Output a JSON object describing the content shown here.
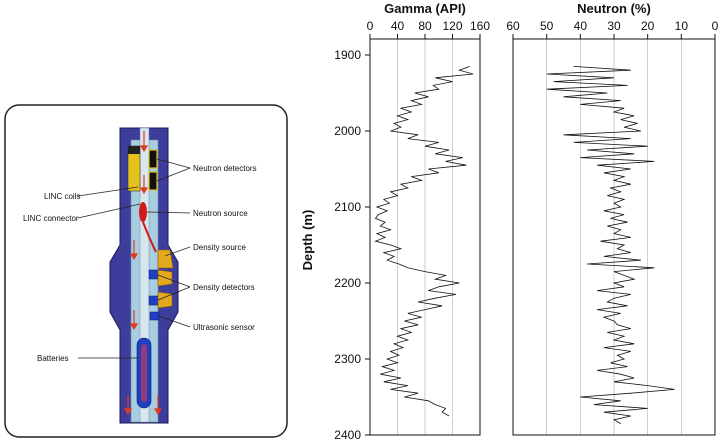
{
  "tool": {
    "labels": {
      "neutron_detectors": "Neutron detectors",
      "linc_coils": "LINC coils",
      "linc_connector": "LINC connector",
      "neutron_source": "Neutron source",
      "density_source": "Density source",
      "density_detectors": "Density detectors",
      "ultrasonic_sensor": "Ultrasonic sensor",
      "batteries": "Batteries"
    },
    "colors": {
      "collar": "#3d3d9c",
      "mandrel": "#a9cde0",
      "source": "#d11b1b",
      "detector": "#1f3fc4",
      "window": "#e3a81b",
      "flow": "#e23b1b"
    }
  },
  "chart_data": [
    {
      "type": "line",
      "title": "Gamma (API)",
      "x_axis_position": "top",
      "xlim": [
        0,
        160
      ],
      "xticks": [
        0,
        40,
        80,
        120,
        160
      ],
      "ylim": [
        1900,
        2400
      ],
      "yticks": [
        1900,
        2000,
        2100,
        2200,
        2300,
        2400
      ],
      "ylabel": "Depth (m)",
      "grid": "vertical",
      "series": [
        {
          "name": "Gamma",
          "depth": [
            1915,
            1920,
            1925,
            1930,
            1935,
            1940,
            1945,
            1950,
            1955,
            1960,
            1965,
            1970,
            1975,
            1980,
            1985,
            1990,
            1995,
            2000,
            2005,
            2010,
            2015,
            2020,
            2025,
            2030,
            2035,
            2040,
            2045,
            2050,
            2055,
            2060,
            2065,
            2070,
            2075,
            2080,
            2085,
            2090,
            2095,
            2100,
            2105,
            2110,
            2115,
            2120,
            2125,
            2130,
            2135,
            2140,
            2145,
            2150,
            2155,
            2160,
            2165,
            2170,
            2175,
            2180,
            2185,
            2190,
            2195,
            2200,
            2205,
            2210,
            2215,
            2220,
            2225,
            2230,
            2235,
            2240,
            2245,
            2250,
            2255,
            2260,
            2265,
            2270,
            2275,
            2280,
            2285,
            2290,
            2295,
            2300,
            2305,
            2310,
            2315,
            2320,
            2325,
            2330,
            2335,
            2340,
            2345,
            2350,
            2355,
            2360,
            2365,
            2370,
            2375
          ],
          "values": [
            145,
            130,
            150,
            95,
            120,
            92,
            100,
            65,
            85,
            60,
            75,
            45,
            60,
            40,
            55,
            35,
            45,
            30,
            70,
            55,
            100,
            80,
            115,
            95,
            135,
            110,
            140,
            85,
            100,
            60,
            75,
            45,
            55,
            30,
            40,
            20,
            28,
            10,
            25,
            12,
            8,
            22,
            15,
            30,
            10,
            22,
            8,
            30,
            45,
            20,
            35,
            25,
            42,
            55,
            80,
            110,
            95,
            130,
            100,
            85,
            125,
            95,
            70,
            105,
            80,
            55,
            75,
            50,
            70,
            45,
            60,
            40,
            55,
            35,
            48,
            30,
            42,
            25,
            40,
            18,
            35,
            15,
            45,
            20,
            55,
            30,
            70,
            50,
            85,
            95,
            110,
            105,
            115
          ]
        }
      ]
    },
    {
      "type": "line",
      "title": "Neutron (%)",
      "x_axis_position": "top",
      "xlim": [
        60,
        0
      ],
      "xticks": [
        60,
        50,
        40,
        30,
        20,
        10,
        0
      ],
      "ylim": [
        1900,
        2400
      ],
      "yticks": [
        1900,
        2000,
        2100,
        2200,
        2300,
        2400
      ],
      "grid": "vertical",
      "series": [
        {
          "name": "Neutron",
          "depth": [
            1915,
            1920,
            1925,
            1930,
            1935,
            1940,
            1945,
            1950,
            1955,
            1960,
            1965,
            1970,
            1975,
            1980,
            1985,
            1990,
            1995,
            2000,
            2005,
            2010,
            2015,
            2020,
            2025,
            2030,
            2035,
            2040,
            2045,
            2050,
            2055,
            2060,
            2065,
            2070,
            2075,
            2080,
            2085,
            2090,
            2095,
            2100,
            2105,
            2110,
            2115,
            2120,
            2125,
            2130,
            2135,
            2140,
            2145,
            2150,
            2155,
            2160,
            2165,
            2170,
            2175,
            2180,
            2185,
            2190,
            2195,
            2200,
            2205,
            2210,
            2215,
            2220,
            2225,
            2230,
            2235,
            2240,
            2245,
            2250,
            2255,
            2260,
            2265,
            2270,
            2275,
            2280,
            2285,
            2290,
            2295,
            2300,
            2305,
            2310,
            2315,
            2320,
            2325,
            2330,
            2335,
            2340,
            2345,
            2350,
            2355,
            2360,
            2365,
            2370,
            2375,
            2380,
            2385
          ],
          "values": [
            42,
            25,
            50,
            30,
            48,
            26,
            50,
            32,
            45,
            28,
            40,
            27,
            30,
            24,
            28,
            23,
            27,
            22,
            45,
            25,
            42,
            20,
            38,
            24,
            40,
            18,
            35,
            25,
            33,
            27,
            30,
            25,
            31,
            28,
            32,
            27,
            30,
            28,
            33,
            27,
            31,
            26,
            32,
            28,
            30,
            25,
            34,
            27,
            29,
            25,
            33,
            22,
            38,
            18,
            30,
            27,
            24,
            30,
            27,
            35,
            25,
            30,
            32,
            26,
            35,
            28,
            33,
            30,
            29,
            25,
            32,
            27,
            30,
            24,
            33,
            25,
            29,
            27,
            31,
            26,
            35,
            28,
            24,
            30,
            20,
            12,
            25,
            40,
            28,
            36,
            20,
            33,
            25,
            30,
            28
          ]
        }
      ]
    }
  ]
}
